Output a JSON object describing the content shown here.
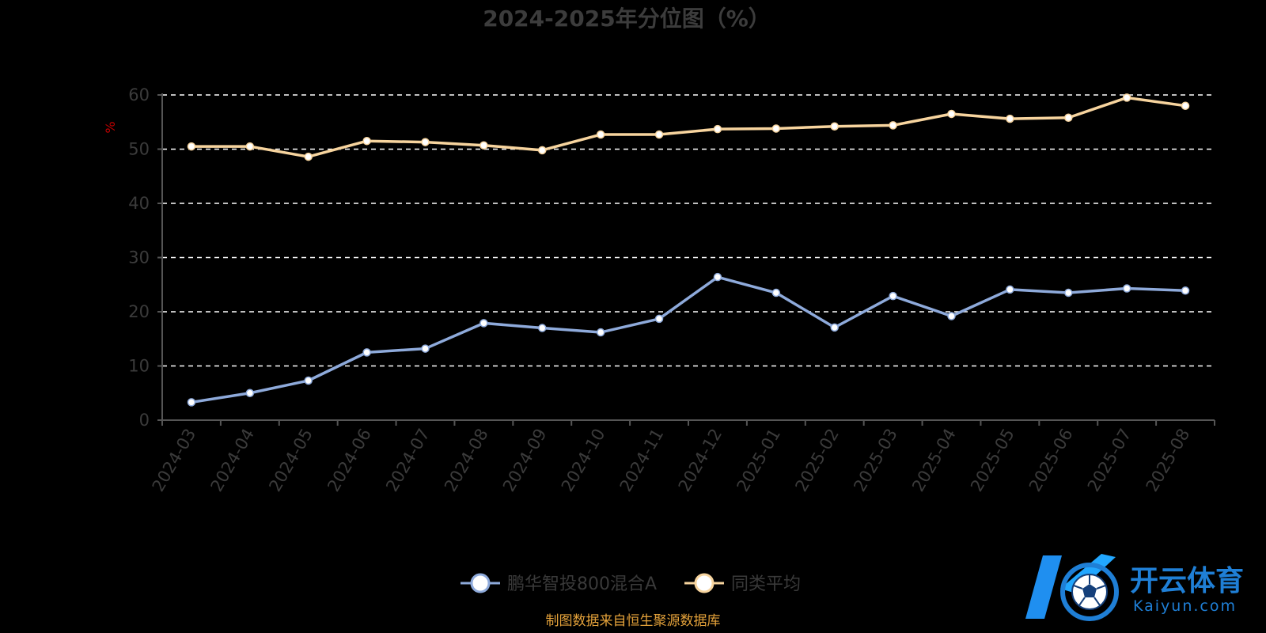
{
  "colors": {
    "background": "#000000",
    "series_fund": "#8eaadb",
    "series_avg": "#f7d49e",
    "grid": "#ffffff",
    "axis": "#555555",
    "ylabel": "#c00000",
    "source_note": "#e3a13a",
    "watermark": "#1f7fd6"
  },
  "source_note": "制图数据来自恒生聚源数据库",
  "watermark": {
    "cn": "开云体育",
    "en": "Kaiyun.com",
    "icon": "soccer-ball-logo-icon"
  },
  "chart_data": {
    "type": "line",
    "title": "2024-2025年分位图（%）",
    "ylabel": "%",
    "xlabel": "",
    "ylim": [
      0,
      60
    ],
    "yticks": [
      0,
      10,
      20,
      30,
      40,
      50,
      60
    ],
    "grid": true,
    "grid_style": "dashed-horizontal",
    "legend_position": "bottom-center",
    "categories": [
      "2024-03",
      "2024-04",
      "2024-05",
      "2024-06",
      "2024-07",
      "2024-08",
      "2024-09",
      "2024-10",
      "2024-11",
      "2024-12",
      "2025-01",
      "2025-02",
      "2025-03",
      "2025-04",
      "2025-05",
      "2025-06",
      "2025-07",
      "2025-08"
    ],
    "series": [
      {
        "name": "鹏华智投800混合A",
        "color": "#8eaadb",
        "values": [
          3.3,
          5.0,
          7.3,
          12.5,
          13.2,
          17.9,
          17.0,
          16.2,
          18.7,
          26.4,
          23.5,
          17.1,
          22.9,
          19.2,
          24.1,
          23.5,
          24.3,
          23.9
        ]
      },
      {
        "name": "同类平均",
        "color": "#f7d49e",
        "values": [
          50.5,
          50.5,
          48.6,
          51.5,
          51.3,
          50.7,
          49.8,
          52.7,
          52.7,
          53.7,
          53.8,
          54.2,
          54.4,
          56.5,
          55.6,
          55.8,
          59.5,
          58.0
        ]
      }
    ]
  }
}
